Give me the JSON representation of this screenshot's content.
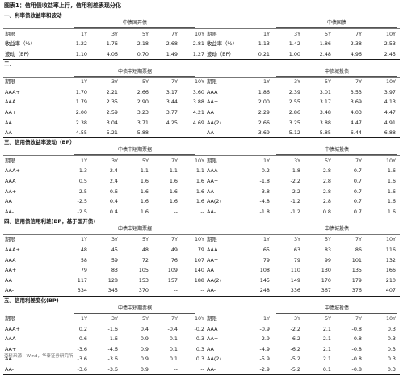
{
  "title": "图表1：信用债收益率上行，信用利差表现分化",
  "source": "资料来源：Wind，华泰证券研究所",
  "sections": [
    {
      "name": "一、利率债收益率和波动",
      "left_group": "中债国开债",
      "right_group": "中债国债",
      "header": [
        "期限",
        "1Y",
        "3Y",
        "5Y",
        "7Y",
        "10Y",
        "期限",
        "1Y",
        "3Y",
        "5Y",
        "7Y",
        "10Y"
      ],
      "rows": [
        [
          "收益率（%）",
          "1.22",
          "1.76",
          "2.18",
          "2.68",
          "2.81",
          "收益率（%）",
          "1.13",
          "1.42",
          "1.86",
          "2.38",
          "2.53"
        ],
        [
          "波动（BP）",
          "1.10",
          "4.06",
          "0.70",
          "1.49",
          "1.27",
          "波动（BP）",
          "0.21",
          "1.00",
          "2.48",
          "4.96",
          "2.45"
        ]
      ]
    },
    {
      "name": "二、",
      "left_group": "中债中短期票据",
      "right_group": "中债城投债",
      "header": [
        "期限",
        "1Y",
        "3Y",
        "5Y",
        "7Y",
        "10Y",
        "期限",
        "1Y",
        "3Y",
        "5Y",
        "7Y",
        "10Y"
      ],
      "rows": [
        [
          "AAA+",
          "1.70",
          "2.21",
          "2.66",
          "3.17",
          "3.60",
          "AAA",
          "1.86",
          "2.39",
          "3.01",
          "3.53",
          "3.97"
        ],
        [
          "AAA",
          "1.79",
          "2.35",
          "2.90",
          "3.44",
          "3.88",
          "AA+",
          "2.00",
          "2.55",
          "3.17",
          "3.69",
          "4.13"
        ],
        [
          "AA+",
          "2.00",
          "2.59",
          "3.23",
          "3.77",
          "4.21",
          "AA",
          "2.29",
          "2.86",
          "3.48",
          "4.03",
          "4.47"
        ],
        [
          "AA",
          "2.38",
          "3.04",
          "3.71",
          "4.25",
          "4.69",
          "AA(2)",
          "2.66",
          "3.25",
          "3.88",
          "4.47",
          "4.91"
        ],
        [
          "AA-",
          "4.55",
          "5.21",
          "5.88",
          "--",
          "--",
          "AA-",
          "3.69",
          "5.12",
          "5.85",
          "6.44",
          "6.88"
        ]
      ]
    },
    {
      "name": "三、信用债收益率波动（BP）",
      "left_group": "中债中短期票据",
      "right_group": "中债城投债",
      "header": [
        "期限",
        "1Y",
        "3Y",
        "5Y",
        "7Y",
        "10Y",
        "期限",
        "1Y",
        "3Y",
        "5Y",
        "7Y",
        "10Y"
      ],
      "rows": [
        [
          "AAA+",
          "1.3",
          "2.4",
          "1.1",
          "1.1",
          "1.1",
          "AAA",
          "0.2",
          "1.8",
          "2.8",
          "0.7",
          "1.6"
        ],
        [
          "AAA",
          "0.5",
          "2.4",
          "1.6",
          "1.6",
          "1.6",
          "AA+",
          "-1.8",
          "-2.2",
          "2.8",
          "0.7",
          "1.6"
        ],
        [
          "AA+",
          "-2.5",
          "-0.6",
          "1.6",
          "1.6",
          "1.6",
          "AA",
          "-3.8",
          "-2.2",
          "2.8",
          "0.7",
          "1.6"
        ],
        [
          "AA",
          "-2.5",
          "0.4",
          "1.6",
          "1.6",
          "1.6",
          "AA(2)",
          "-4.8",
          "-1.2",
          "2.8",
          "0.7",
          "1.6"
        ],
        [
          "AA-",
          "-2.5",
          "0.4",
          "1.6",
          "--",
          "--",
          "AA-",
          "-1.8",
          "-1.2",
          "0.8",
          "0.7",
          "1.6"
        ]
      ]
    },
    {
      "name": "四、信用债信用利差(BP，基于国开债)",
      "left_group": "中债中短期票据",
      "right_group": "中债城投债",
      "header": [
        "期限",
        "1Y",
        "3Y",
        "5Y",
        "7Y",
        "10Y",
        "期限",
        "1Y",
        "3Y",
        "5Y",
        "7Y",
        "10Y"
      ],
      "rows": [
        [
          "AAA+",
          "48",
          "45",
          "48",
          "49",
          "79",
          "AAA",
          "65",
          "63",
          "83",
          "86",
          "116"
        ],
        [
          "AAA",
          "58",
          "59",
          "72",
          "76",
          "107",
          "AA+",
          "79",
          "79",
          "99",
          "101",
          "132"
        ],
        [
          "AA+",
          "79",
          "83",
          "105",
          "109",
          "140",
          "AA",
          "108",
          "110",
          "130",
          "135",
          "166"
        ],
        [
          "AA",
          "117",
          "128",
          "153",
          "157",
          "188",
          "AA(2)",
          "145",
          "149",
          "170",
          "179",
          "210"
        ],
        [
          "AA-",
          "334",
          "345",
          "370",
          "--",
          "--",
          "AA-",
          "248",
          "336",
          "367",
          "376",
          "407"
        ]
      ]
    },
    {
      "name": "五、信用利差变化(BP)",
      "left_group": "中债中短期票据",
      "right_group": "中债城投债",
      "header": [
        "期限",
        "1Y",
        "3Y",
        "5Y",
        "7Y",
        "10Y",
        "期限",
        "1Y",
        "3Y",
        "5Y",
        "7Y",
        "10Y"
      ],
      "rows": [
        [
          "AAA+",
          "0.2",
          "-1.6",
          "0.4",
          "-0.4",
          "-0.2",
          "AAA",
          "-0.9",
          "-2.2",
          "2.1",
          "-0.8",
          "0.3"
        ],
        [
          "AAA",
          "-0.6",
          "-1.6",
          "0.9",
          "0.1",
          "0.3",
          "AA+",
          "-2.9",
          "-6.2",
          "2.1",
          "-0.8",
          "0.3"
        ],
        [
          "AA+",
          "-3.6",
          "-4.6",
          "0.9",
          "0.1",
          "0.3",
          "AA",
          "-4.9",
          "-6.2",
          "2.1",
          "-0.8",
          "0.3"
        ],
        [
          "AA",
          "-3.6",
          "-3.6",
          "0.9",
          "0.1",
          "0.3",
          "AA(2)",
          "-5.9",
          "-5.2",
          "2.1",
          "-0.8",
          "0.3"
        ],
        [
          "AA-",
          "-3.6",
          "-3.6",
          "0.9",
          "--",
          "--",
          "AA-",
          "-2.9",
          "-5.2",
          "0.1",
          "-0.8",
          "0.3"
        ]
      ]
    }
  ]
}
